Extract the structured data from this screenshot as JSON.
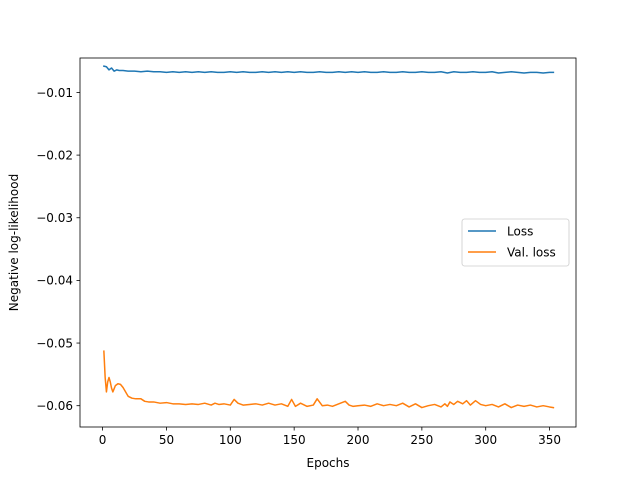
{
  "chart_data": {
    "type": "line",
    "title": "",
    "xlabel": "Epochs",
    "ylabel": "Negative log-likelihood",
    "xlim": [
      -17.7,
      370.7
    ],
    "ylim": [
      -0.0634,
      -0.0045
    ],
    "xticks": [
      0,
      50,
      100,
      150,
      200,
      250,
      300,
      350
    ],
    "xtick_labels": [
      "0",
      "50",
      "100",
      "150",
      "200",
      "250",
      "300",
      "350"
    ],
    "yticks": [
      -0.06,
      -0.05,
      -0.04,
      -0.03,
      -0.02,
      -0.01
    ],
    "ytick_labels": [
      "−0.06",
      "−0.05",
      "−0.04",
      "−0.03",
      "−0.02",
      "−0.01"
    ],
    "grid": false,
    "legend_position": "center-right",
    "series": [
      {
        "name": "Loss",
        "color": "#1f77b4",
        "x": [
          1,
          3,
          5,
          7,
          9,
          11,
          13,
          16,
          20,
          25,
          30,
          35,
          40,
          45,
          50,
          55,
          60,
          65,
          70,
          75,
          80,
          85,
          90,
          95,
          100,
          105,
          110,
          115,
          120,
          125,
          130,
          135,
          140,
          145,
          150,
          155,
          160,
          165,
          170,
          175,
          180,
          185,
          190,
          195,
          200,
          205,
          210,
          215,
          220,
          225,
          230,
          235,
          240,
          245,
          250,
          255,
          260,
          265,
          270,
          275,
          280,
          285,
          290,
          295,
          300,
          305,
          310,
          315,
          320,
          325,
          330,
          335,
          340,
          345,
          350,
          353
        ],
        "y": [
          -0.0058,
          -0.0059,
          -0.0064,
          -0.0061,
          -0.0066,
          -0.0064,
          -0.0065,
          -0.0065,
          -0.0066,
          -0.0066,
          -0.0067,
          -0.0066,
          -0.0067,
          -0.0067,
          -0.0068,
          -0.0067,
          -0.0068,
          -0.0067,
          -0.0068,
          -0.0067,
          -0.0068,
          -0.0067,
          -0.0068,
          -0.0068,
          -0.0067,
          -0.0068,
          -0.0067,
          -0.0068,
          -0.0068,
          -0.0067,
          -0.0068,
          -0.0067,
          -0.0068,
          -0.0067,
          -0.0068,
          -0.0067,
          -0.0068,
          -0.0068,
          -0.0067,
          -0.0068,
          -0.0068,
          -0.0067,
          -0.0068,
          -0.0067,
          -0.0068,
          -0.0067,
          -0.0068,
          -0.0068,
          -0.0067,
          -0.0068,
          -0.0068,
          -0.0067,
          -0.0068,
          -0.0068,
          -0.0067,
          -0.0068,
          -0.0068,
          -0.0067,
          -0.0069,
          -0.0067,
          -0.0068,
          -0.0068,
          -0.0067,
          -0.0068,
          -0.0068,
          -0.0067,
          -0.0069,
          -0.0068,
          -0.0067,
          -0.0068,
          -0.0069,
          -0.0068,
          -0.0068,
          -0.0069,
          -0.0068,
          -0.0068
        ]
      },
      {
        "name": "Val. loss",
        "color": "#ff7f0e",
        "x": [
          1,
          2,
          3,
          4,
          5,
          6,
          7,
          8,
          9,
          10,
          12,
          14,
          16,
          18,
          20,
          23,
          26,
          30,
          33,
          36,
          40,
          45,
          50,
          55,
          60,
          65,
          70,
          75,
          80,
          85,
          88,
          91,
          95,
          100,
          103,
          106,
          110,
          115,
          120,
          125,
          130,
          135,
          140,
          145,
          148,
          151,
          155,
          160,
          165,
          168,
          172,
          176,
          180,
          185,
          190,
          193,
          196,
          200,
          205,
          210,
          215,
          220,
          225,
          230,
          235,
          240,
          245,
          250,
          255,
          260,
          265,
          268,
          270,
          272,
          275,
          278,
          282,
          285,
          288,
          292,
          296,
          300,
          305,
          310,
          315,
          320,
          325,
          330,
          335,
          340,
          345,
          350,
          353
        ],
        "y": [
          -0.0513,
          -0.0555,
          -0.0578,
          -0.0562,
          -0.0555,
          -0.0562,
          -0.0572,
          -0.0578,
          -0.0573,
          -0.0568,
          -0.0565,
          -0.0566,
          -0.0571,
          -0.0578,
          -0.0585,
          -0.0588,
          -0.0589,
          -0.0589,
          -0.0593,
          -0.0594,
          -0.0594,
          -0.0596,
          -0.0595,
          -0.0597,
          -0.0597,
          -0.0598,
          -0.0597,
          -0.0598,
          -0.0596,
          -0.0599,
          -0.0596,
          -0.0598,
          -0.0597,
          -0.0599,
          -0.059,
          -0.0596,
          -0.0599,
          -0.0598,
          -0.0597,
          -0.0599,
          -0.0596,
          -0.0599,
          -0.0597,
          -0.0601,
          -0.059,
          -0.0601,
          -0.0596,
          -0.0601,
          -0.0599,
          -0.0589,
          -0.06,
          -0.0599,
          -0.0601,
          -0.0597,
          -0.0593,
          -0.0599,
          -0.0601,
          -0.06,
          -0.0599,
          -0.0601,
          -0.0597,
          -0.06,
          -0.0598,
          -0.06,
          -0.0596,
          -0.0602,
          -0.0597,
          -0.0603,
          -0.06,
          -0.0598,
          -0.0602,
          -0.0597,
          -0.0601,
          -0.0594,
          -0.0598,
          -0.0593,
          -0.0597,
          -0.0592,
          -0.0599,
          -0.0592,
          -0.0598,
          -0.06,
          -0.0598,
          -0.0602,
          -0.0597,
          -0.0603,
          -0.0599,
          -0.0601,
          -0.0599,
          -0.0602,
          -0.06,
          -0.0602,
          -0.0603
        ]
      }
    ]
  }
}
